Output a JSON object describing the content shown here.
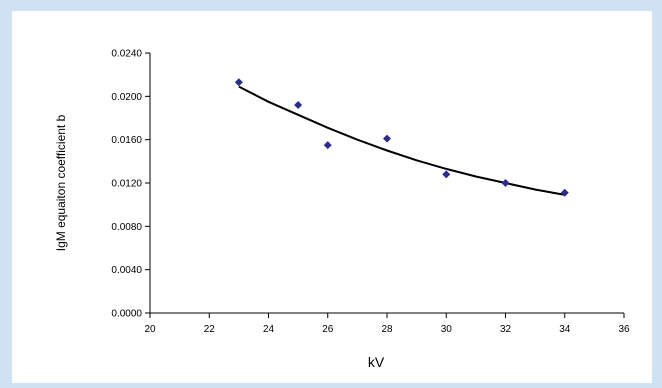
{
  "chart_data": {
    "type": "scatter",
    "title": "",
    "xlabel": "kV",
    "ylabel": "IgM equaiton coefficient b",
    "xlim": [
      20,
      36
    ],
    "ylim": [
      0,
      0.024
    ],
    "x_ticks": [
      "20",
      "22",
      "24",
      "26",
      "28",
      "30",
      "32",
      "34",
      "36"
    ],
    "y_ticks": [
      "0.0000",
      "0.0040",
      "0.0080",
      "0.0120",
      "0.0160",
      "0.0200",
      "0.0240"
    ],
    "grid": false,
    "legend": "none",
    "series": [
      {
        "type": "scatter",
        "marker": "diamond",
        "color": "#2b2d8c",
        "x": [
          23,
          25,
          26,
          28,
          30,
          32,
          34
        ],
        "y": [
          0.0213,
          0.0192,
          0.0155,
          0.0161,
          0.0128,
          0.012,
          0.0111
        ]
      }
    ],
    "trendline": {
      "type": "line",
      "color": "#000000",
      "x": [
        23,
        24,
        25,
        26,
        27,
        28,
        29,
        30,
        31,
        32,
        33,
        34
      ],
      "y": [
        0.0209,
        0.0195,
        0.0183,
        0.0171,
        0.016,
        0.015,
        0.0141,
        0.0133,
        0.0126,
        0.012,
        0.0114,
        0.0109
      ]
    }
  }
}
